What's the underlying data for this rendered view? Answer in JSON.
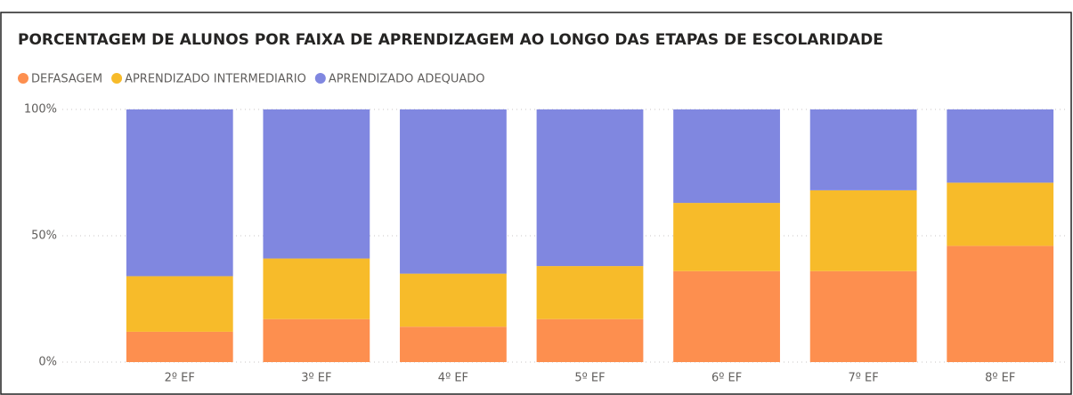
{
  "chart_data": {
    "type": "stacked_bar",
    "title": "PORCENTAGEM DE ALUNOS POR FAIXA DE APRENDIZAGEM AO LONGO DAS ETAPAS DE ESCOLARIDADE",
    "categories": [
      "2º EF",
      "3º EF",
      "4º EF",
      "5º EF",
      "6º EF",
      "7º EF",
      "8º EF"
    ],
    "series": [
      {
        "name": "DEFASAGEM",
        "color": "#fd8f4f",
        "values": [
          12,
          17,
          14,
          17,
          36,
          36,
          46
        ]
      },
      {
        "name": "APRENDIZADO INTERMEDIARIO",
        "color": "#f7bb2a",
        "values": [
          22,
          24,
          21,
          21,
          27,
          32,
          25
        ]
      },
      {
        "name": "APRENDIZADO ADEQUADO",
        "color": "#8087e0",
        "values": [
          66,
          59,
          65,
          62,
          37,
          32,
          29
        ]
      }
    ],
    "ylim": [
      0,
      100
    ],
    "yticks": [
      {
        "value": 0,
        "label": "0%"
      },
      {
        "value": 50,
        "label": "50%"
      },
      {
        "value": 100,
        "label": "100%"
      }
    ],
    "grid": true,
    "legend": "top-left"
  }
}
